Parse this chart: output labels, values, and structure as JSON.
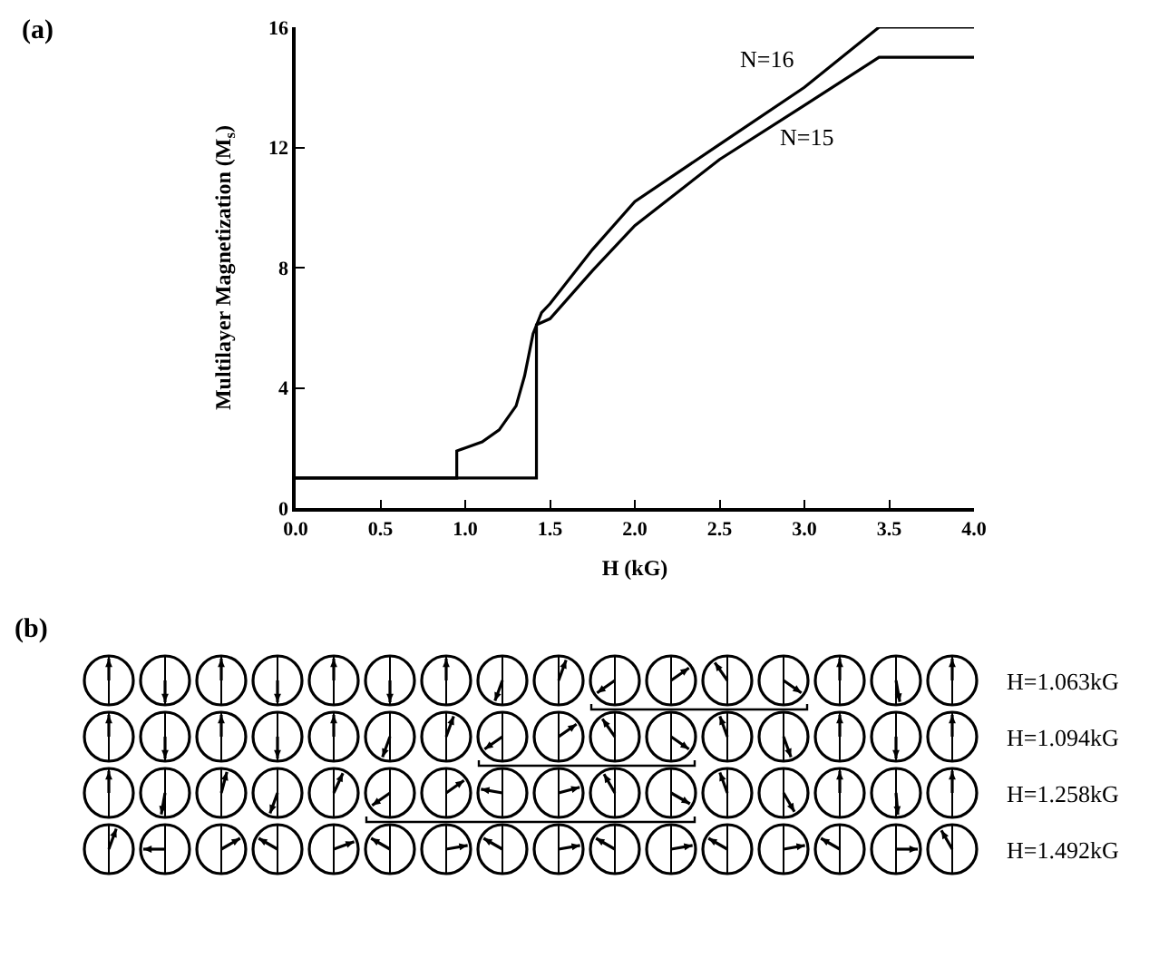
{
  "chart_data": [
    {
      "type": "line",
      "xlabel": "H (kG)",
      "ylabel": "Multilayer Magnetization (M$_{s}$)",
      "annotations": [
        "(a)"
      ],
      "xlim": [
        0,
        4
      ],
      "xticks": [
        {
          "value": 0,
          "label": "0.0"
        },
        {
          "value": 0.5,
          "label": "0.5"
        },
        {
          "value": 1,
          "label": "1.0"
        },
        {
          "value": 1.5,
          "label": "1.5"
        },
        {
          "value": 2,
          "label": "2.0"
        },
        {
          "value": 2.5,
          "label": "2.5"
        },
        {
          "value": 3,
          "label": "3.0"
        },
        {
          "value": 3.5,
          "label": "3.5"
        },
        {
          "value": 4,
          "label": "4.0"
        }
      ],
      "ylim": [
        0,
        16
      ],
      "yticks": [
        0,
        4,
        8,
        12,
        16
      ],
      "grid": false,
      "legend": false,
      "marker": "none",
      "line_style": "solid",
      "series": [
        {
          "name": "N=16",
          "color": "#000000",
          "x": [
            0,
            0.95,
            0.95,
            1.0,
            1.1,
            1.2,
            1.3,
            1.35,
            1.4,
            1.45,
            1.5,
            1.75,
            2.0,
            2.5,
            3.0,
            3.44,
            4.0
          ],
          "values": [
            1,
            1,
            1.9,
            2.0,
            2.2,
            2.6,
            3.4,
            4.4,
            5.8,
            6.5,
            6.8,
            8.6,
            10.2,
            12.1,
            14.0,
            16,
            16
          ]
        },
        {
          "name": "N=15",
          "color": "#000000",
          "x": [
            0,
            1.42,
            1.42,
            1.5,
            1.75,
            2.0,
            2.5,
            3.0,
            3.44,
            4.0
          ],
          "values": [
            1,
            1,
            6.1,
            6.3,
            7.9,
            9.4,
            11.6,
            13.4,
            15,
            15
          ]
        }
      ]
    },
    {
      "type": "other",
      "title": "(b)",
      "annotations": [
        "H=1.063kG",
        "H=1.094kG",
        "H=1.258kG",
        "H=1.492kG"
      ]
    }
  ]
}
